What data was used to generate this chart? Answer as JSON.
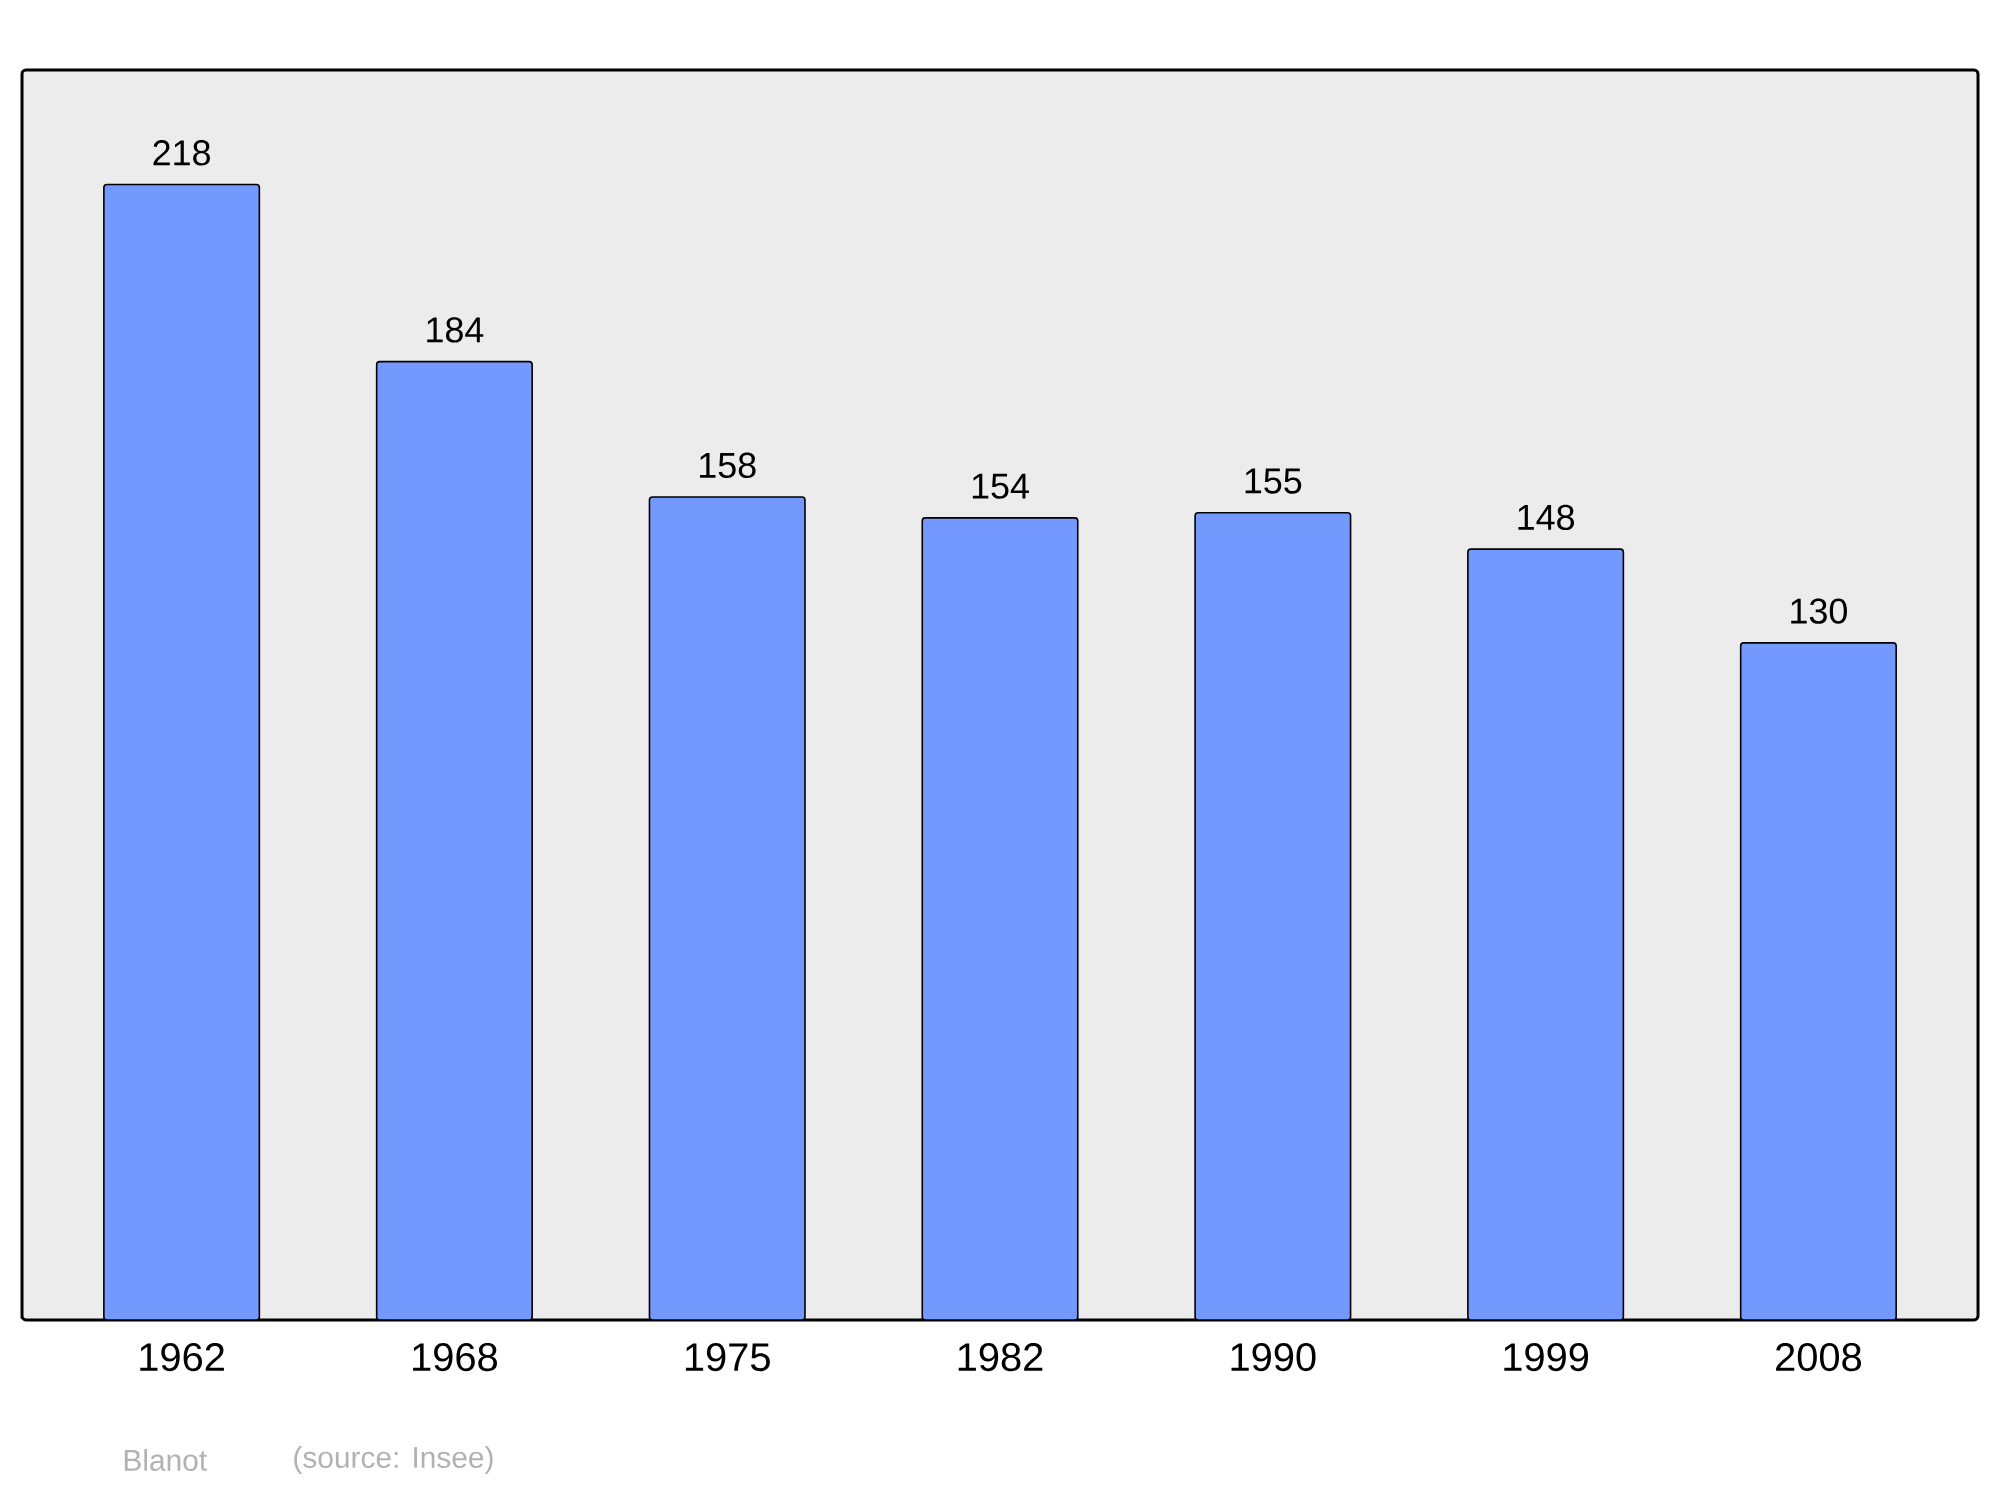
{
  "chart_data": {
    "type": "bar",
    "categories": [
      "1962",
      "1968",
      "1975",
      "1982",
      "1990",
      "1999",
      "2008"
    ],
    "values": [
      218,
      184,
      158,
      154,
      155,
      148,
      130
    ],
    "color": "#7399ff",
    "ylim": [
      0,
      240
    ],
    "data_labels": true,
    "annotations": [
      "Blanot",
      "(source: Insee)"
    ]
  }
}
